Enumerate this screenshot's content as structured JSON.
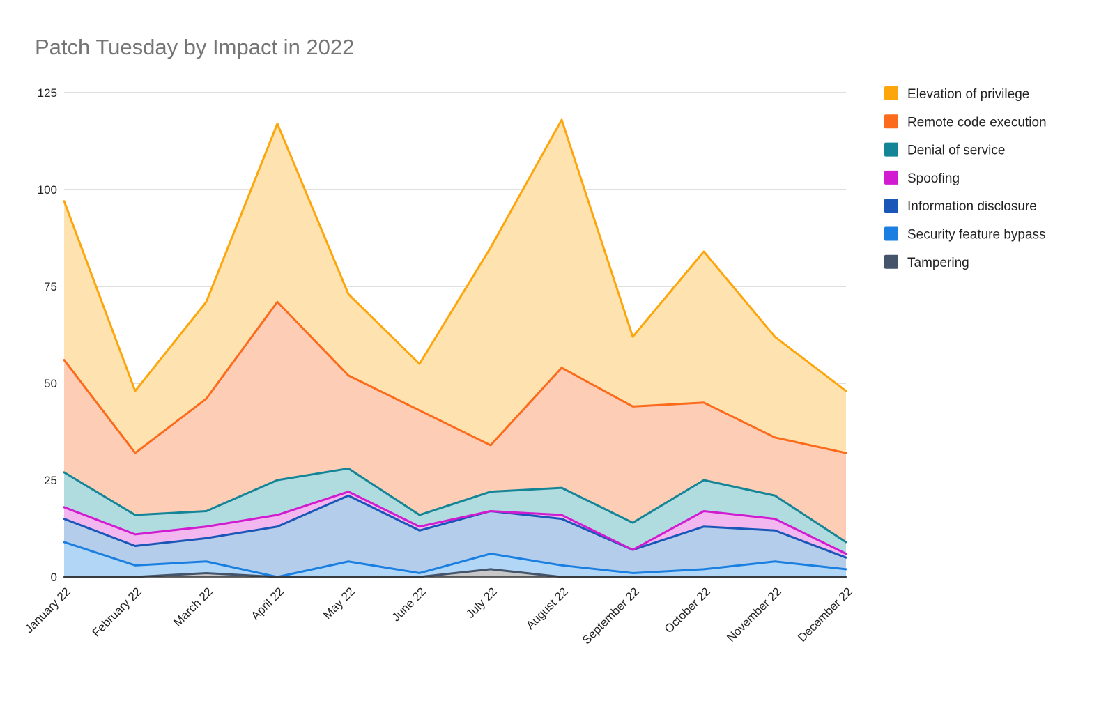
{
  "chart_data": {
    "type": "area",
    "stacked": true,
    "title": "Patch Tuesday by Impact in 2022",
    "xlabel": "",
    "ylabel": "",
    "ylim": [
      0,
      125
    ],
    "yticks": [
      0,
      25,
      50,
      75,
      100,
      125
    ],
    "grid": true,
    "legend_position": "right",
    "categories": [
      "January 22",
      "February 22",
      "March 22",
      "April 22",
      "May 22",
      "June 22",
      "July 22",
      "August 22",
      "September 22",
      "October 22",
      "November 22",
      "December 22"
    ],
    "series": [
      {
        "name": "Tampering",
        "color": "#44546a",
        "fill": "#c8c8c8",
        "values": [
          0,
          0,
          1,
          0,
          0,
          0,
          2,
          0,
          0,
          0,
          0,
          0
        ]
      },
      {
        "name": "Security feature bypass",
        "color": "#1a7fe0",
        "fill": "#b2d7f6",
        "values": [
          9,
          3,
          3,
          0,
          4,
          1,
          4,
          3,
          1,
          2,
          4,
          2
        ]
      },
      {
        "name": "Information disclosure",
        "color": "#1a56b8",
        "fill": "#b3cdea",
        "values": [
          6,
          5,
          6,
          13,
          17,
          11,
          11,
          12,
          6,
          11,
          8,
          3
        ]
      },
      {
        "name": "Spoofing",
        "color": "#d01bd0",
        "fill": "#f2b7ee",
        "values": [
          3,
          3,
          3,
          3,
          1,
          1,
          0,
          1,
          0,
          4,
          3,
          1
        ]
      },
      {
        "name": "Denial of service",
        "color": "#148597",
        "fill": "#b1dcdf",
        "values": [
          9,
          5,
          4,
          9,
          6,
          3,
          5,
          7,
          7,
          8,
          6,
          3
        ]
      },
      {
        "name": "Remote code execution",
        "color": "#fc6a1c",
        "fill": "#fecdb6",
        "values": [
          29,
          16,
          29,
          46,
          24,
          27,
          12,
          31,
          30,
          20,
          15,
          23
        ]
      },
      {
        "name": "Elevation of privilege",
        "color": "#fca60c",
        "fill": "#fee3b0",
        "values": [
          41,
          16,
          25,
          46,
          21,
          12,
          51,
          64,
          18,
          39,
          26,
          16
        ]
      }
    ]
  }
}
